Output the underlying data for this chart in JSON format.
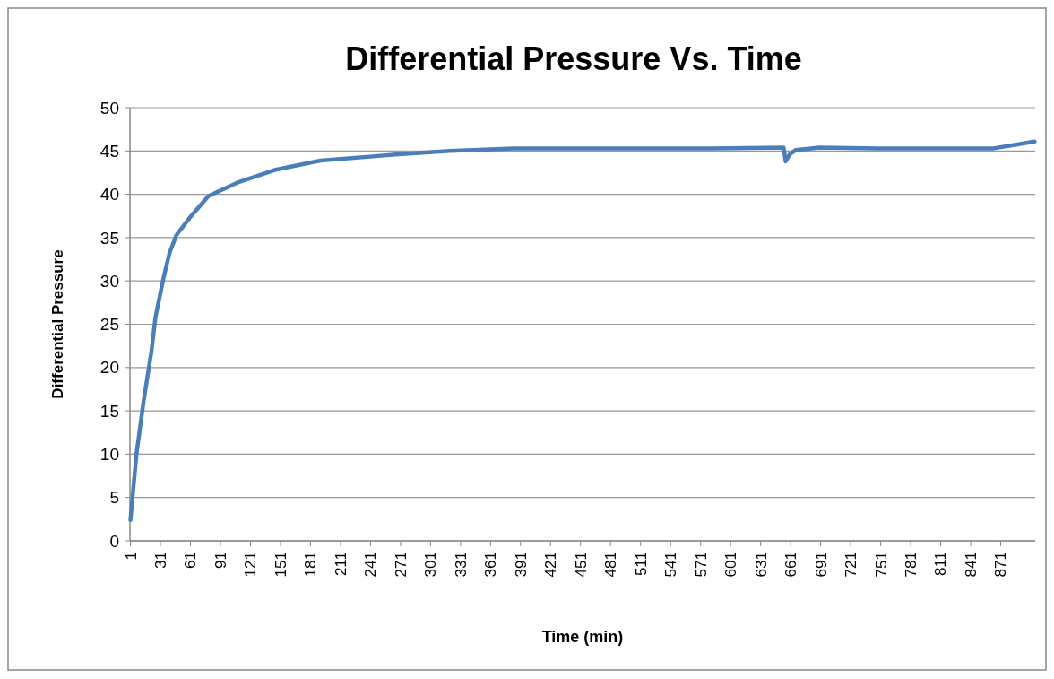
{
  "chart_data": {
    "type": "line",
    "title": "Differential Pressure Vs. Time",
    "xlabel": "Time (min)",
    "ylabel": "Differential Pressure",
    "x": [
      1,
      7,
      14,
      22,
      26,
      34,
      40,
      47,
      61,
      79,
      109,
      145,
      191,
      257,
      266,
      320,
      384,
      450,
      512,
      580,
      654,
      656,
      660,
      666,
      690,
      750,
      820,
      864,
      885,
      905
    ],
    "series": [
      {
        "color": "#4a7ebb",
        "values": [
          2.4,
          10.0,
          16.0,
          21.9,
          25.8,
          30.3,
          33.2,
          35.3,
          37.4,
          39.8,
          41.4,
          42.8,
          43.9,
          44.5,
          44.6,
          45.0,
          45.3,
          45.3,
          45.3,
          45.3,
          45.4,
          43.8,
          44.6,
          45.1,
          45.4,
          45.3,
          45.3,
          45.3,
          45.7,
          46.1
        ]
      }
    ],
    "xlim": [
      0.5,
      905.5
    ],
    "xticks": [
      1,
      31,
      61,
      91,
      121,
      151,
      181,
      211,
      241,
      271,
      301,
      331,
      361,
      391,
      421,
      451,
      481,
      511,
      541,
      571,
      601,
      631,
      661,
      691,
      721,
      751,
      781,
      811,
      841,
      871
    ],
    "ylim": [
      0,
      50
    ],
    "yticks": [
      0,
      5,
      10,
      15,
      20,
      25,
      30,
      35,
      40,
      45,
      50
    ],
    "grid": "y",
    "marker": "none",
    "line_style": "solid"
  }
}
